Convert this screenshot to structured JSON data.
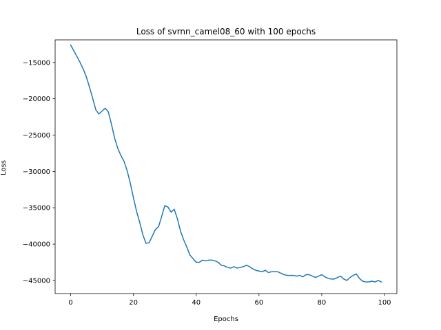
{
  "chart_data": {
    "type": "line",
    "title": "Loss of svrnn_camel08_60 with 100 epochs",
    "xlabel": "Epochs",
    "ylabel": "Loss",
    "xlim": [
      -4.95,
      103.95
    ],
    "ylim": [
      -46800,
      -11900
    ],
    "xticks": [
      0,
      20,
      40,
      60,
      80,
      100
    ],
    "yticks": [
      -45000,
      -40000,
      -35000,
      -30000,
      -25000,
      -20000,
      -15000
    ],
    "grid": false,
    "colors": {
      "line": "#1f77b4",
      "axes": "#000000",
      "background": "#ffffff"
    },
    "series": [
      {
        "x": [
          0,
          1,
          2,
          3,
          4,
          5,
          6,
          7,
          8,
          9,
          10,
          11,
          12,
          13,
          14,
          15,
          16,
          17,
          18,
          19,
          20,
          21,
          22,
          23,
          24,
          25,
          26,
          27,
          28,
          29,
          30,
          31,
          32,
          33,
          34,
          35,
          36,
          37,
          38,
          39,
          40,
          41,
          42,
          43,
          44,
          45,
          46,
          47,
          48,
          49,
          50,
          51,
          52,
          53,
          54,
          55,
          56,
          57,
          58,
          59,
          60,
          61,
          62,
          63,
          64,
          65,
          66,
          67,
          68,
          69,
          70,
          71,
          72,
          73,
          74,
          75,
          76,
          77,
          78,
          79,
          80,
          81,
          82,
          83,
          84,
          85,
          86,
          87,
          88,
          89,
          90,
          91,
          92,
          93,
          94,
          95,
          96,
          97,
          98,
          99
        ],
        "values": [
          -12600,
          -13400,
          -14200,
          -15000,
          -15900,
          -17000,
          -18400,
          -19900,
          -21500,
          -22100,
          -21700,
          -21300,
          -21800,
          -23500,
          -25400,
          -26800,
          -27800,
          -28600,
          -29900,
          -31600,
          -33600,
          -35500,
          -37000,
          -38700,
          -39900,
          -39800,
          -38900,
          -38000,
          -37600,
          -36200,
          -34700,
          -34900,
          -35600,
          -35200,
          -36500,
          -38200,
          -39400,
          -40400,
          -41500,
          -42000,
          -42500,
          -42500,
          -42200,
          -42300,
          -42200,
          -42200,
          -42300,
          -42500,
          -42900,
          -43000,
          -43200,
          -43300,
          -43100,
          -43300,
          -43200,
          -43100,
          -42900,
          -43100,
          -43400,
          -43600,
          -43700,
          -43800,
          -43600,
          -43900,
          -43800,
          -43800,
          -43800,
          -44000,
          -44200,
          -44300,
          -44300,
          -44300,
          -44400,
          -44300,
          -44500,
          -44200,
          -44200,
          -44400,
          -44600,
          -44400,
          -44200,
          -44500,
          -44700,
          -44800,
          -44800,
          -44600,
          -44400,
          -44800,
          -45000,
          -44600,
          -44300,
          -44100,
          -44700,
          -45100,
          -45200,
          -45200,
          -45100,
          -45200,
          -45000,
          -45200
        ]
      }
    ]
  }
}
